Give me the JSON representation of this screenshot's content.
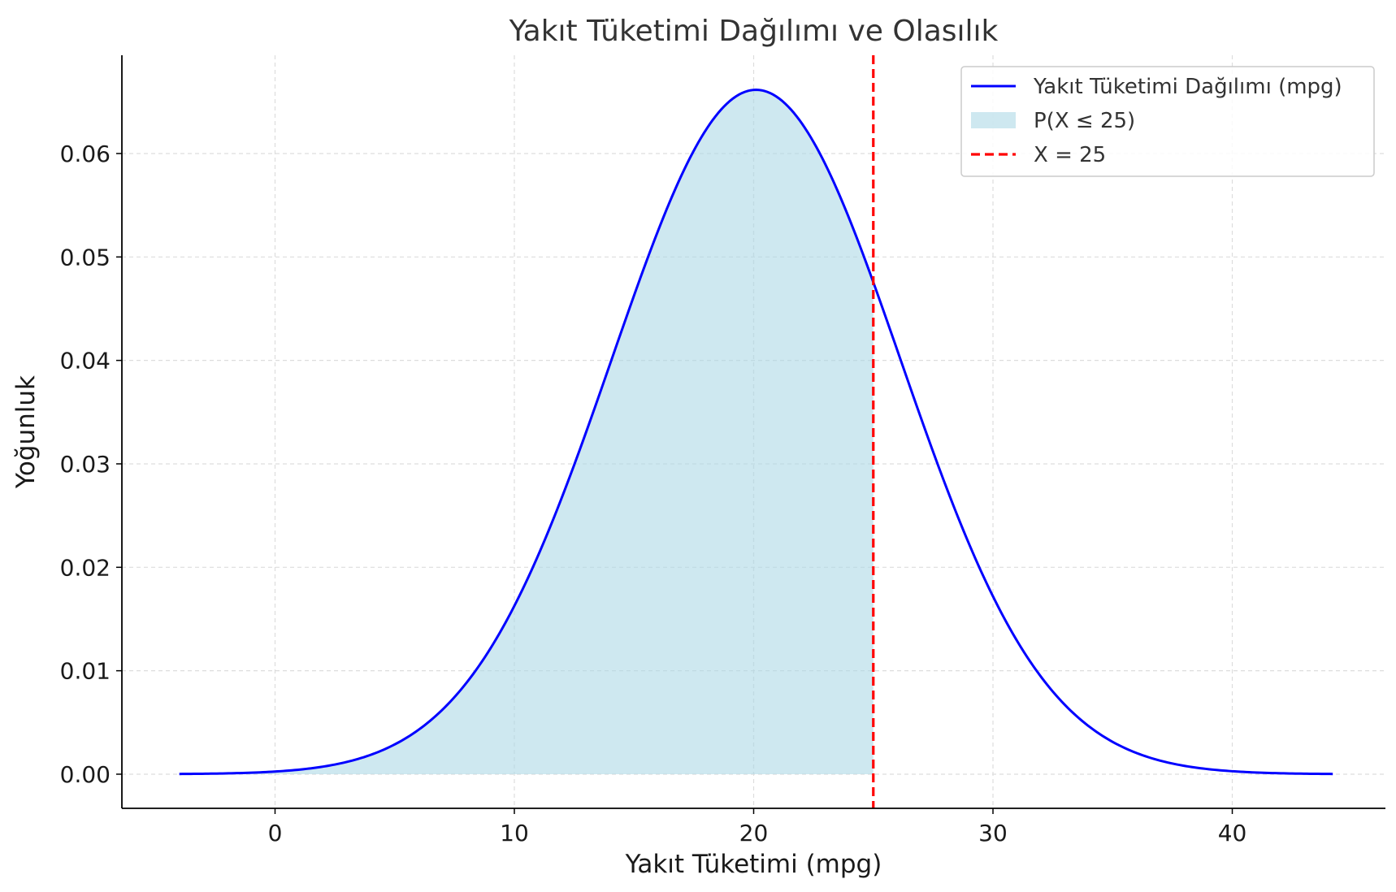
{
  "chart_data": {
    "type": "line",
    "title": "Yakıt Tüketimi Dağılımı ve Olasılık",
    "xlabel": "Yakıt Tüketimi (mpg)",
    "ylabel": "Yoğunluk",
    "xlim": [
      -6.4,
      46.4
    ],
    "ylim": [
      -0.0033,
      0.0695
    ],
    "xticks": [
      0,
      10,
      20,
      30,
      40
    ],
    "yticks": [
      0.0,
      0.01,
      0.02,
      0.03,
      0.04,
      0.05,
      0.06
    ],
    "ytick_labels": [
      "0.00",
      "0.01",
      "0.02",
      "0.03",
      "0.04",
      "0.05",
      "0.06"
    ],
    "grid": true,
    "legend_position": "top-right",
    "series": [
      {
        "name": "Yakıt Tüketimi Dağılımı (mpg)",
        "kind": "normal-pdf",
        "mean": 20.1,
        "std": 6.03,
        "x_range": [
          -4,
          44.2
        ],
        "color": "#0000ff"
      },
      {
        "name": "P(X ≤ 25)",
        "kind": "area-under-curve",
        "x_range": [
          -4,
          25
        ],
        "color": "#add8e6"
      },
      {
        "name": "X = 25",
        "kind": "vertical-line",
        "x": 25,
        "color": "#ff0000",
        "style": "dashed"
      }
    ]
  }
}
